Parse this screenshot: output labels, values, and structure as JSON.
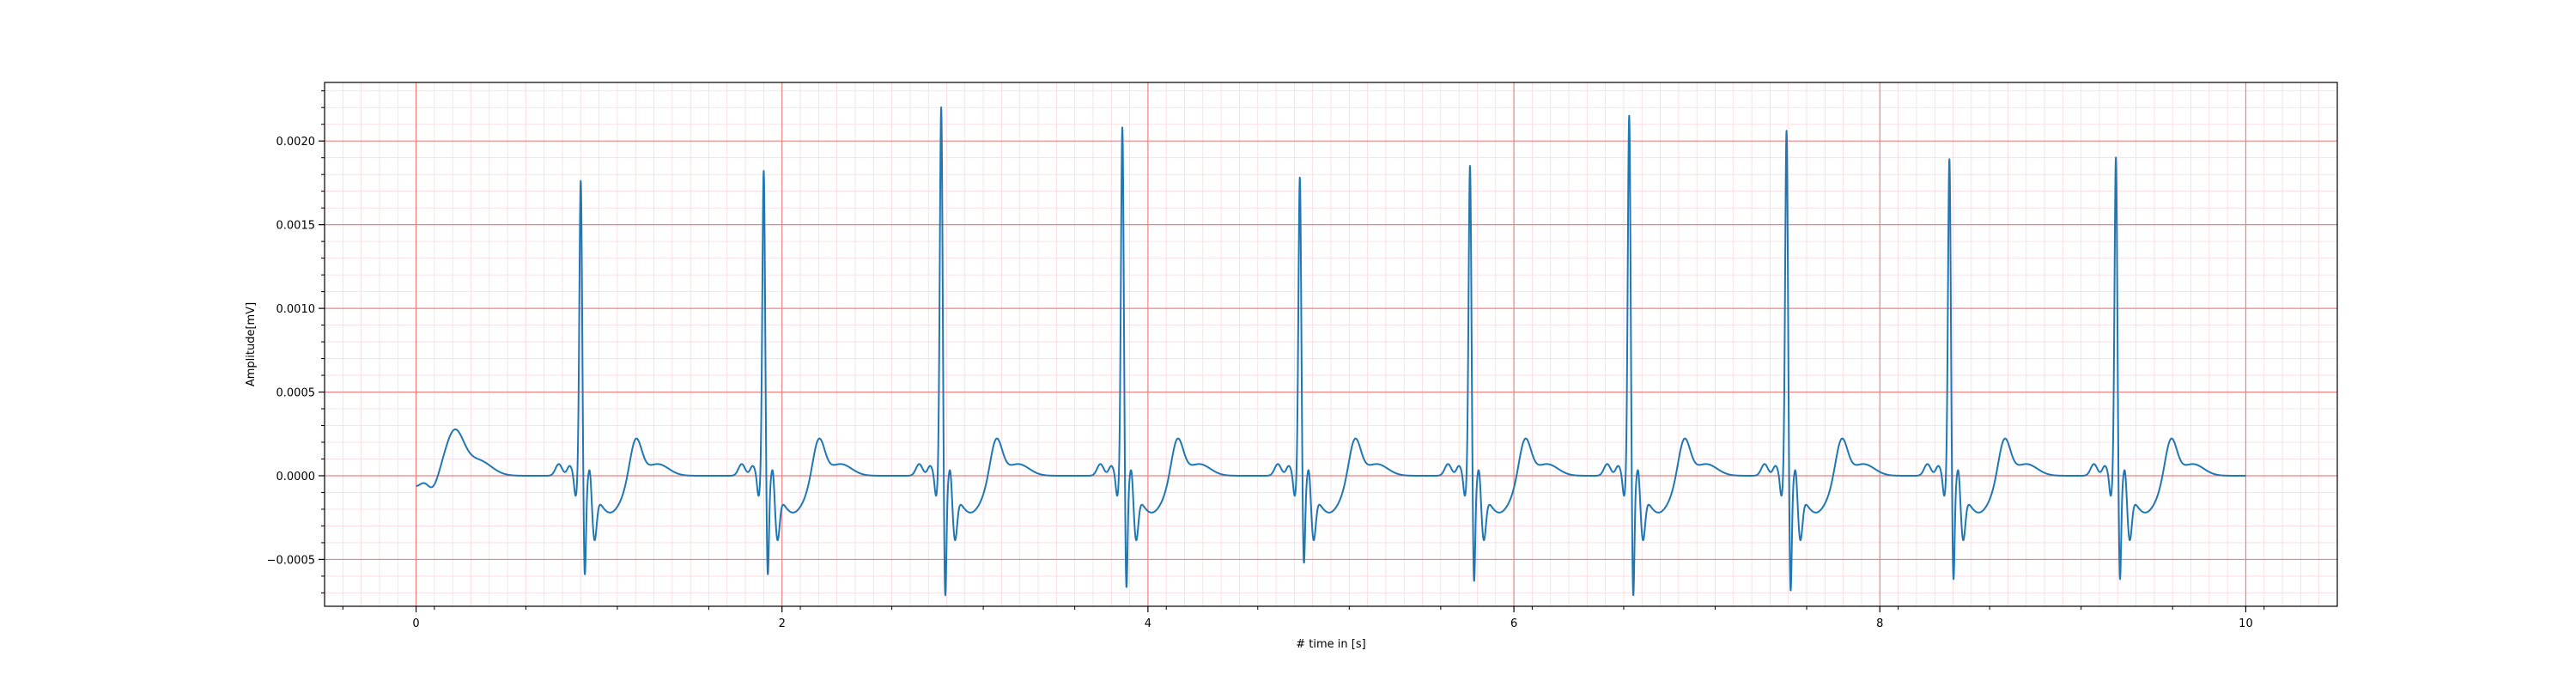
{
  "chart_data": {
    "type": "line",
    "xlabel": "# time in [s]",
    "ylabel": "Amplitude[mV]",
    "xlim": [
      -0.5,
      10.5
    ],
    "ylim": [
      -0.00078,
      0.00235
    ],
    "x_ticks": [
      0,
      2,
      4,
      6,
      8,
      10
    ],
    "x_tick_labels": [
      "0",
      "2",
      "4",
      "6",
      "8",
      "10"
    ],
    "y_ticks": [
      -0.0005,
      0.0,
      0.0005,
      0.001,
      0.0015,
      0.002
    ],
    "y_tick_labels": [
      "−0.0005",
      "0.0000",
      "0.0005",
      "0.0010",
      "0.0015",
      "0.0020"
    ],
    "grid": true,
    "grid_major_color": "#f08080",
    "grid_minor_color": "#f9d9df",
    "line_color": "#1f77b4",
    "x_range": [
      0,
      10
    ],
    "r_peaks": [
      {
        "t": 0.9,
        "peak": 0.00178,
        "trough": -0.0005
      },
      {
        "t": 1.9,
        "peak": 0.00184,
        "trough": -0.0005
      },
      {
        "t": 2.87,
        "peak": 0.00222,
        "trough": -0.00063
      },
      {
        "t": 3.86,
        "peak": 0.0021,
        "trough": -0.00058
      },
      {
        "t": 4.83,
        "peak": 0.0018,
        "trough": -0.00043
      },
      {
        "t": 5.76,
        "peak": 0.00187,
        "trough": -0.00054
      },
      {
        "t": 6.63,
        "peak": 0.00217,
        "trough": -0.00063
      },
      {
        "t": 7.49,
        "peak": 0.00208,
        "trough": -0.0006
      },
      {
        "t": 8.38,
        "peak": 0.00191,
        "trough": -0.00053
      },
      {
        "t": 9.29,
        "peak": 0.00192,
        "trough": -0.00053
      }
    ],
    "initial_t_wave": {
      "t": 0.21,
      "amplitude": 0.00026
    }
  }
}
